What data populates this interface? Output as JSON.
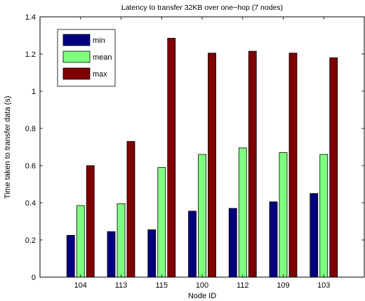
{
  "chart_data": {
    "type": "bar",
    "title": "Latency to transfer 32KB over one−hop (7 nodes)",
    "xlabel": "Node ID",
    "ylabel": "Time taken to transfer data (s)",
    "categories": [
      "104",
      "113",
      "115",
      "100",
      "112",
      "109",
      "103"
    ],
    "ylim": [
      0,
      1.4
    ],
    "yticks": [
      0,
      0.2,
      0.4,
      0.6,
      0.8,
      1,
      1.2,
      1.4
    ],
    "ytick_labels": [
      "0",
      "0.2",
      "0.4",
      "0.6",
      "0.8",
      "1",
      "1.2",
      "1.4"
    ],
    "grid": false,
    "legend_position": "top-left",
    "series": [
      {
        "name": "min",
        "color": "#00007f",
        "values": [
          0.225,
          0.245,
          0.255,
          0.355,
          0.37,
          0.405,
          0.45
        ]
      },
      {
        "name": "mean",
        "color": "#7fff7f",
        "values": [
          0.385,
          0.395,
          0.59,
          0.66,
          0.695,
          0.67,
          0.66
        ]
      },
      {
        "name": "max",
        "color": "#7f0000",
        "values": [
          0.6,
          0.73,
          1.285,
          1.205,
          1.215,
          1.205,
          1.18
        ]
      }
    ]
  }
}
